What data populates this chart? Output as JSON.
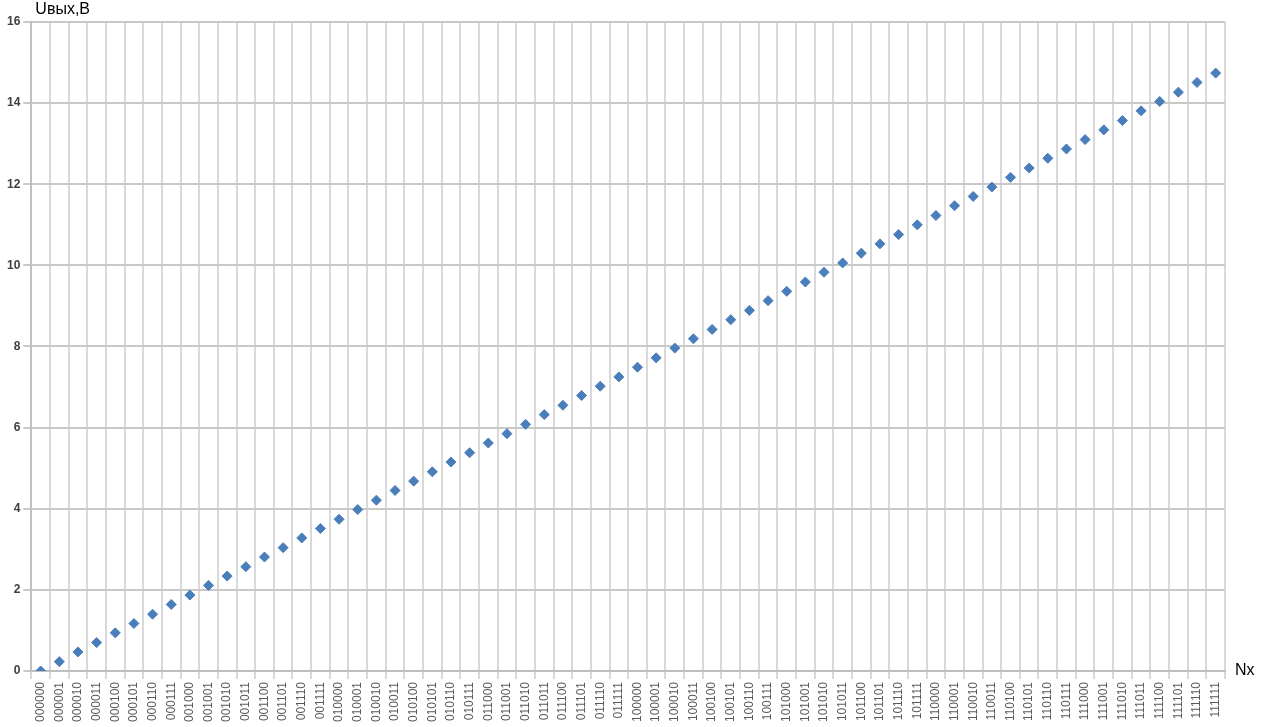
{
  "chart_data": {
    "type": "scatter",
    "xlabel": "Nx",
    "ylabel": "Uвых,B",
    "categories": [
      "000000",
      "000001",
      "000010",
      "000011",
      "000100",
      "000101",
      "000110",
      "000111",
      "001000",
      "001001",
      "001010",
      "001011",
      "001100",
      "001101",
      "001110",
      "001111",
      "010000",
      "010001",
      "010010",
      "010011",
      "010100",
      "010101",
      "010110",
      "010111",
      "011000",
      "011001",
      "011010",
      "011011",
      "011100",
      "011101",
      "011110",
      "011111",
      "100000",
      "100001",
      "100010",
      "100011",
      "100100",
      "100101",
      "100110",
      "100111",
      "101000",
      "101001",
      "101010",
      "101011",
      "101100",
      "101101",
      "101110",
      "101111",
      "110000",
      "110001",
      "110010",
      "110011",
      "110100",
      "110101",
      "110110",
      "110111",
      "111000",
      "111001",
      "111010",
      "111011",
      "111100",
      "111101",
      "111110",
      "111111"
    ],
    "values": [
      0,
      0.23,
      0.47,
      0.7,
      0.94,
      1.17,
      1.4,
      1.64,
      1.87,
      2.11,
      2.34,
      2.57,
      2.81,
      3.04,
      3.28,
      3.51,
      3.74,
      3.98,
      4.21,
      4.45,
      4.68,
      4.91,
      5.15,
      5.38,
      5.62,
      5.85,
      6.08,
      6.32,
      6.55,
      6.79,
      7.02,
      7.25,
      7.49,
      7.72,
      7.96,
      8.19,
      8.42,
      8.66,
      8.89,
      9.13,
      9.36,
      9.59,
      9.83,
      10.06,
      10.3,
      10.53,
      10.76,
      11,
      11.23,
      11.47,
      11.7,
      11.93,
      12.17,
      12.4,
      12.64,
      12.87,
      13.1,
      13.34,
      13.57,
      13.81,
      14.04,
      14.27,
      14.51,
      14.74
    ],
    "color": "#4a7ebb",
    "marker": "diamond",
    "grid": true,
    "legend": false,
    "ylim": [
      0,
      16
    ],
    "yticks": [
      0,
      2,
      4,
      6,
      8,
      10,
      12,
      14,
      16
    ]
  }
}
